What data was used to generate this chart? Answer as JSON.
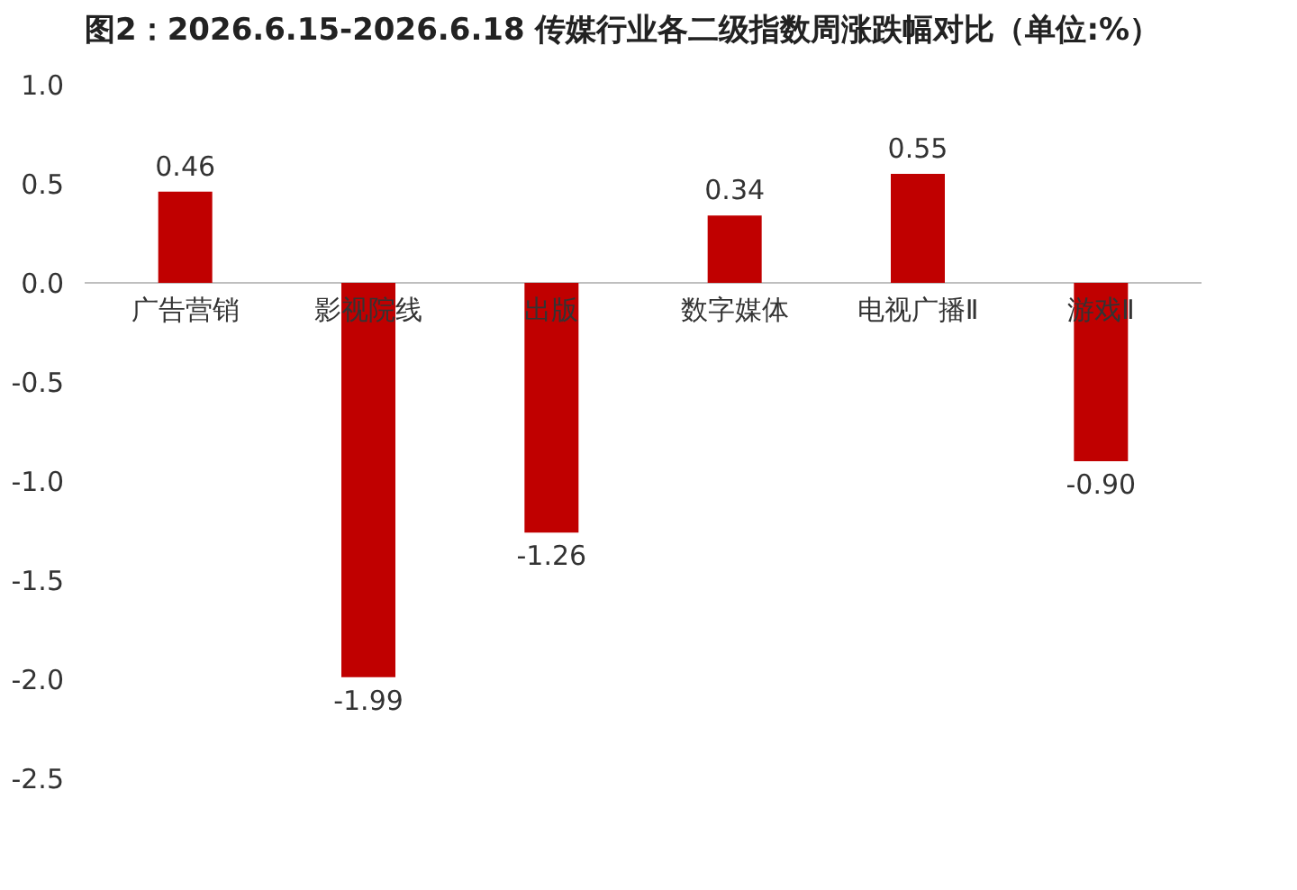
{
  "chart_data": {
    "type": "bar",
    "title": "图2：2026.6.15-2026.6.18 传媒行业各二级指数周涨跌幅对比（单位:%）",
    "categories": [
      "广告营销",
      "影视院线",
      "出版",
      "数字媒体",
      "电视广播Ⅱ",
      "游戏Ⅱ"
    ],
    "values": [
      0.46,
      -1.99,
      -1.26,
      0.34,
      0.55,
      -0.9
    ],
    "color": "#c00000",
    "ylim": [
      -2.5,
      1.0
    ],
    "yticks": [
      {
        "value": -2.5,
        "label": "-2.5"
      },
      {
        "value": -2.0,
        "label": "-2.0"
      },
      {
        "value": -1.5,
        "label": "-1.5"
      },
      {
        "value": -1.0,
        "label": "-1.0"
      },
      {
        "value": -0.5,
        "label": "-0.5"
      },
      {
        "value": 0.0,
        "label": "0.0"
      },
      {
        "value": 0.5,
        "label": "0.5"
      },
      {
        "value": 1.0,
        "label": "1.0"
      }
    ],
    "value_labels": [
      "0.46",
      "-1.99",
      "-1.26",
      "0.34",
      "0.55",
      "-0.90"
    ],
    "grid": false
  }
}
